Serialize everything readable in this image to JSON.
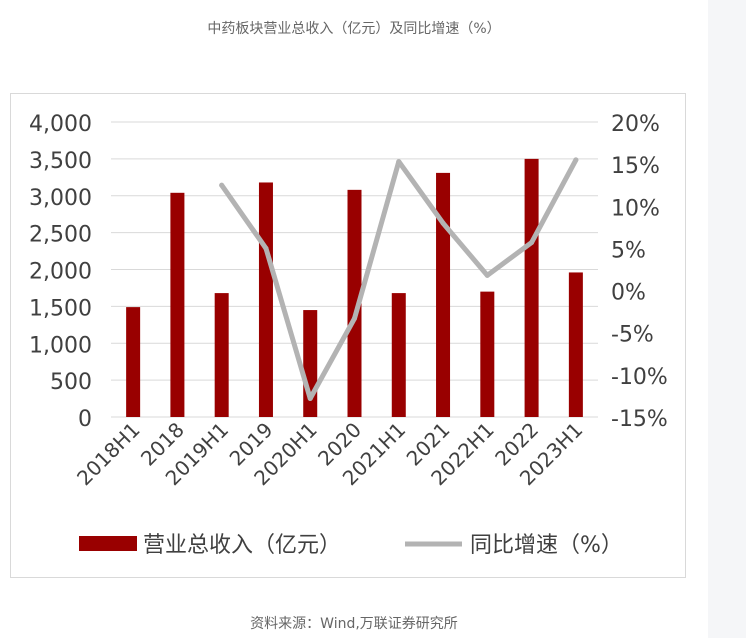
{
  "page": {
    "title": "中药板块营业总收入（亿元）及同比增速（%）",
    "source": "资料来源：Wind,万联证券研究所"
  },
  "chart_data": {
    "type": "bar",
    "categories": [
      "2018H1",
      "2018",
      "2019H1",
      "2019",
      "2020H1",
      "2020",
      "2021H1",
      "2021",
      "2022H1",
      "2022",
      "2023H1"
    ],
    "series": [
      {
        "name": "营业总收入（亿元）",
        "type": "bar",
        "axis": "left",
        "color": "#990000",
        "values": [
          1490,
          3040,
          1680,
          3180,
          1450,
          3080,
          1680,
          3310,
          1700,
          3500,
          1960
        ]
      },
      {
        "name": "同比增速（%）",
        "type": "line",
        "axis": "right",
        "color": "#b3b3b3",
        "values": [
          null,
          null,
          12.5,
          5.0,
          -12.8,
          -3.3,
          15.3,
          8.0,
          1.8,
          5.7,
          15.5
        ]
      }
    ],
    "y_left": {
      "ylim": [
        0,
        4000
      ],
      "ticks": [
        0,
        500,
        1000,
        1500,
        2000,
        2500,
        3000,
        3500,
        4000
      ],
      "tick_labels": [
        "0",
        "500",
        "1,000",
        "1,500",
        "2,000",
        "2,500",
        "3,000",
        "3,500",
        "4,000"
      ]
    },
    "y_right": {
      "ylim": [
        -15,
        20
      ],
      "ticks": [
        -15,
        -10,
        -5,
        0,
        5,
        10,
        15,
        20
      ],
      "tick_labels": [
        "-15%",
        "-10%",
        "-5%",
        "0%",
        "5%",
        "10%",
        "15%",
        "20%"
      ]
    },
    "grid": true,
    "legend_position": "bottom"
  }
}
